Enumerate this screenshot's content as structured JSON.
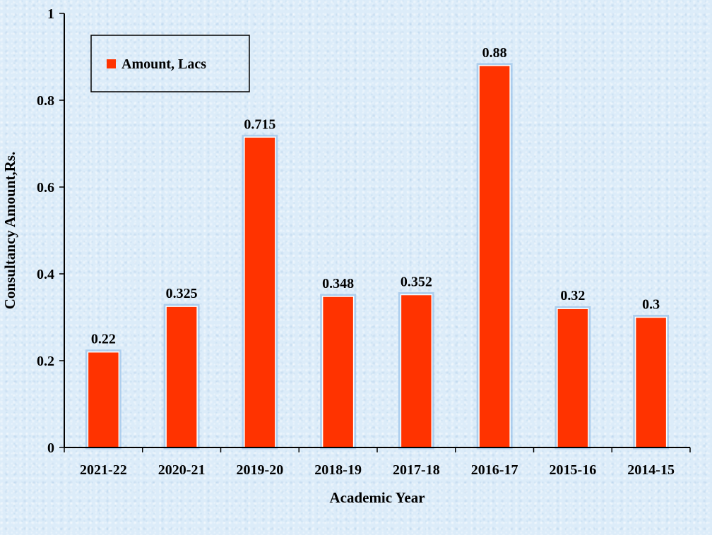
{
  "chart_data": {
    "type": "bar",
    "categories": [
      "2021-22",
      "2020-21",
      "2019-20",
      "2018-19",
      "2017-18",
      "2016-17",
      "2015-16",
      "2014-15"
    ],
    "series": [
      {
        "name": "Amount, Lacs",
        "values": [
          0.22,
          0.325,
          0.715,
          0.348,
          0.352,
          0.88,
          0.32,
          0.3
        ],
        "color": "#ff3300"
      }
    ],
    "data_labels": [
      "0.22",
      "0.325",
      "0.715",
      "0.348",
      "0.352",
      "0.88",
      "0.32",
      "0.3"
    ],
    "xlabel": "Academic Year",
    "ylabel": "Consultancy Amount,Rs.",
    "ylim": [
      0,
      1
    ],
    "y_ticks": [
      0,
      0.2,
      0.4,
      0.6,
      0.8,
      1
    ],
    "y_tick_labels": [
      "0",
      "0.2",
      "0.4",
      "0.6",
      "0.8",
      "1"
    ],
    "grid": false,
    "legend_position": "top-left",
    "background_color": "#dcecf9"
  }
}
